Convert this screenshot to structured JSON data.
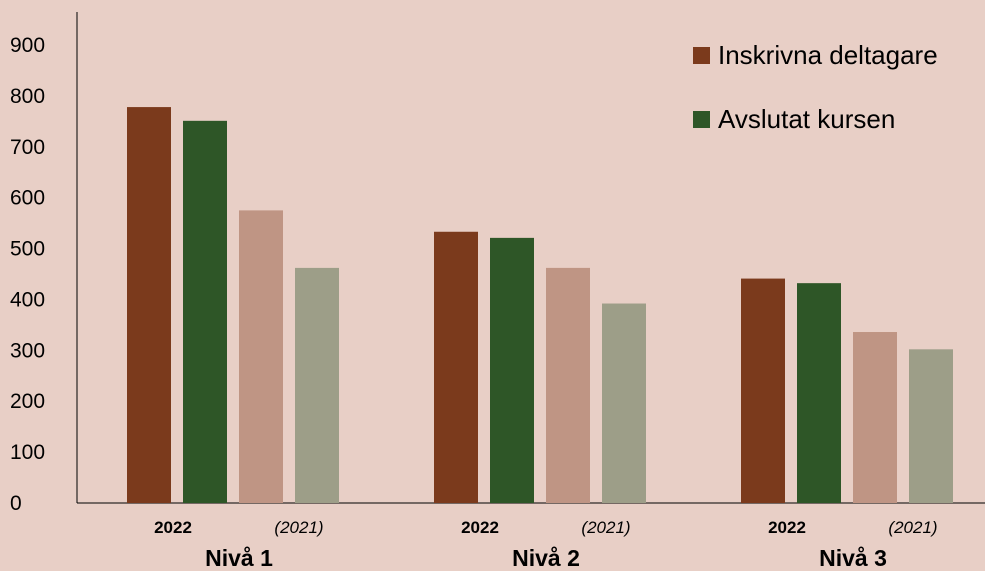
{
  "chart_data": {
    "type": "bar",
    "ylim": [
      0,
      900
    ],
    "yticks": [
      0,
      100,
      200,
      300,
      400,
      500,
      600,
      700,
      800,
      900
    ],
    "groups": [
      {
        "label": "Nivå 1",
        "year_labels": [
          "2022",
          "(2021)"
        ]
      },
      {
        "label": "Nivå 2",
        "year_labels": [
          "2022",
          "(2021)"
        ]
      },
      {
        "label": "Nivå 3",
        "year_labels": [
          "2022",
          "(2021)"
        ]
      }
    ],
    "series": [
      {
        "name": "Inskrivna deltagare",
        "year": "2022",
        "color": "#7b3a1c",
        "values": [
          778,
          533,
          441
        ]
      },
      {
        "name": "Avslutat kursen",
        "year": "2022",
        "color": "#2e5627",
        "values": [
          751,
          521,
          432
        ]
      },
      {
        "name": "Inskrivna deltagare",
        "year": "2021",
        "color": "#bf9584",
        "values": [
          575,
          462,
          336
        ]
      },
      {
        "name": "Avslutat kursen",
        "year": "2021",
        "color": "#9d9e88",
        "values": [
          462,
          392,
          302
        ]
      }
    ],
    "legend": {
      "position": "top-right",
      "items": [
        {
          "label": "Inskrivna deltagare",
          "color": "#7b3a1c"
        },
        {
          "label": "Avslutat kursen",
          "color": "#2e5627"
        }
      ]
    },
    "grid": false
  }
}
